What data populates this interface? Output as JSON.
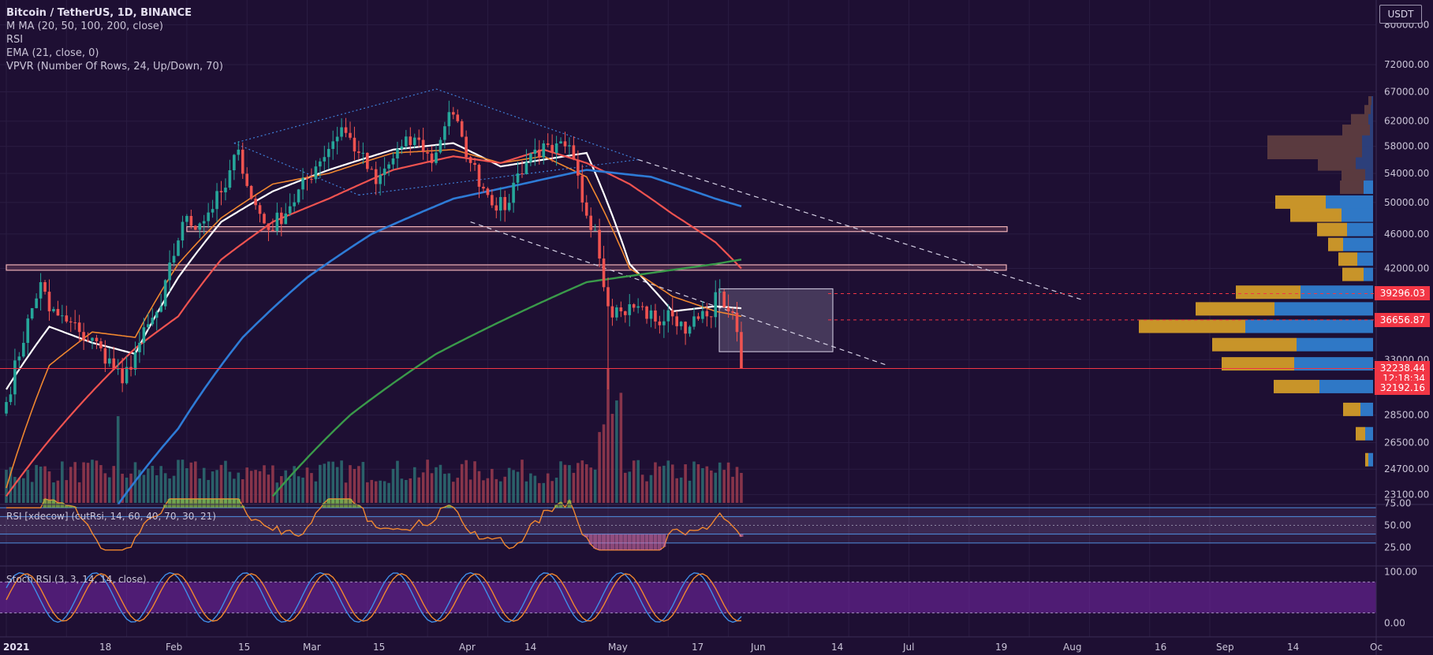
{
  "header": {
    "symbol": "Bitcoin / TetherUS, 1D, BINANCE",
    "indicators": [
      "M MA (20, 50, 100, 200, close)",
      "RSI",
      "EMA (21, close, 0)",
      "VPVR (Number Of Rows, 24, Up/Down, 70)"
    ],
    "currency": "USDT"
  },
  "panes": {
    "rsi_label": "RSI [xdecow] (cutRsi, 14, 60, 40, 70, 30, 21)",
    "stoch_label": "Stoch RSI (3, 3, 14, 14, close)"
  },
  "price_axis": {
    "ticks": [
      "80000.00",
      "72000.00",
      "67000.00",
      "62000.00",
      "58000.00",
      "54000.00",
      "50000.00",
      "46000.00",
      "42000.00",
      "33000.00",
      "28500.00",
      "26500.00",
      "24700.00",
      "23100.00"
    ],
    "top_partial": "8",
    "rsi_ticks": [
      "75.00",
      "50.00",
      "25.00"
    ],
    "stoch_ticks": [
      "100.00",
      "0.00"
    ]
  },
  "price_badges": [
    {
      "label": "39296.03",
      "value": 39296.03,
      "color": "#f23645"
    },
    {
      "label": "36656.87",
      "value": 36656.87,
      "color": "#f23645"
    },
    {
      "label": "32238.44",
      "value": 32238.44,
      "color": "#f23645"
    },
    {
      "label": "12:18:34",
      "value": 31400,
      "color": "#f23645"
    },
    {
      "label": "32192.16",
      "value": 30600,
      "color": "#f23645"
    }
  ],
  "time_axis": [
    "2021",
    "18",
    "Feb",
    "15",
    "Mar",
    "15",
    "Apr",
    "14",
    "May",
    "17",
    "Jun",
    "14",
    "Jul",
    "19",
    "Aug",
    "16",
    "Sep",
    "14",
    "Oc"
  ],
  "colors": {
    "background": "#1e0f33",
    "bull": "#26a69a",
    "bear": "#ef5350",
    "ma20": "#ffffff",
    "ma50": "#ef5350",
    "ma100": "#2e7bd6",
    "ma200": "#3a9a4a",
    "ema21": "#f0872f"
  },
  "chart_data": {
    "type": "candlestick",
    "ylim": [
      22500,
      84000
    ],
    "horizontal_levels": [
      39296.03,
      36656.87,
      32238.44
    ],
    "zones": [
      [
        46300,
        46900
      ],
      [
        41800,
        42400
      ]
    ],
    "range_box": [
      33700,
      39800
    ],
    "anchor_closes": [
      {
        "day": 0,
        "close": 29500
      },
      {
        "day": 8,
        "close": 40500
      },
      {
        "day": 10,
        "close": 37500
      },
      {
        "day": 14,
        "close": 36500
      },
      {
        "day": 17,
        "close": 35500
      },
      {
        "day": 22,
        "close": 34000
      },
      {
        "day": 27,
        "close": 31000
      },
      {
        "day": 31,
        "close": 34500
      },
      {
        "day": 36,
        "close": 38000
      },
      {
        "day": 41,
        "close": 47500
      },
      {
        "day": 45,
        "close": 47300
      },
      {
        "day": 51,
        "close": 52000
      },
      {
        "day": 54,
        "close": 57500
      },
      {
        "day": 57,
        "close": 50500
      },
      {
        "day": 61,
        "close": 46500
      },
      {
        "day": 66,
        "close": 49500
      },
      {
        "day": 72,
        "close": 55000
      },
      {
        "day": 78,
        "close": 61000
      },
      {
        "day": 82,
        "close": 57000
      },
      {
        "day": 86,
        "close": 52500
      },
      {
        "day": 92,
        "close": 58000
      },
      {
        "day": 96,
        "close": 59000
      },
      {
        "day": 99,
        "close": 55500
      },
      {
        "day": 103,
        "close": 63500
      },
      {
        "day": 106,
        "close": 59500
      },
      {
        "day": 108,
        "close": 55500
      },
      {
        "day": 112,
        "close": 51000
      },
      {
        "day": 116,
        "close": 49000
      },
      {
        "day": 119,
        "close": 54000
      },
      {
        "day": 123,
        "close": 57500
      },
      {
        "day": 127,
        "close": 57000
      },
      {
        "day": 130,
        "close": 58000
      },
      {
        "day": 132,
        "close": 56000
      },
      {
        "day": 134,
        "close": 50000
      },
      {
        "day": 137,
        "close": 46500
      },
      {
        "day": 140,
        "close": 38000
      },
      {
        "day": 143,
        "close": 37500
      },
      {
        "day": 147,
        "close": 38000
      },
      {
        "day": 151,
        "close": 36500
      },
      {
        "day": 155,
        "close": 37000
      },
      {
        "day": 159,
        "close": 36000
      },
      {
        "day": 163,
        "close": 37000
      },
      {
        "day": 166,
        "close": 39500
      },
      {
        "day": 168,
        "close": 37500
      },
      {
        "day": 170,
        "close": 35500
      },
      {
        "day": 171,
        "close": 32238.44
      }
    ],
    "ma_series": {
      "ma20": [
        [
          0,
          30500
        ],
        [
          10,
          36000
        ],
        [
          20,
          34500
        ],
        [
          30,
          33500
        ],
        [
          40,
          41000
        ],
        [
          50,
          47500
        ],
        [
          62,
          51500
        ],
        [
          75,
          54500
        ],
        [
          90,
          57500
        ],
        [
          104,
          58500
        ],
        [
          115,
          55000
        ],
        [
          125,
          56000
        ],
        [
          135,
          57000
        ],
        [
          145,
          42500
        ],
        [
          155,
          37500
        ],
        [
          165,
          38000
        ],
        [
          171,
          37800
        ]
      ],
      "ema21": [
        [
          0,
          23500
        ],
        [
          10,
          32500
        ],
        [
          20,
          35500
        ],
        [
          30,
          35000
        ],
        [
          40,
          42500
        ],
        [
          50,
          48000
        ],
        [
          62,
          52500
        ],
        [
          75,
          54000
        ],
        [
          90,
          57000
        ],
        [
          104,
          57500
        ],
        [
          115,
          55500
        ],
        [
          125,
          56500
        ],
        [
          135,
          53500
        ],
        [
          145,
          42000
        ],
        [
          155,
          39000
        ],
        [
          165,
          37500
        ],
        [
          171,
          37000
        ]
      ],
      "ma50": [
        [
          0,
          23000
        ],
        [
          15,
          28500
        ],
        [
          30,
          34000
        ],
        [
          40,
          37000
        ],
        [
          50,
          43000
        ],
        [
          62,
          47500
        ],
        [
          75,
          50500
        ],
        [
          90,
          54500
        ],
        [
          104,
          56500
        ],
        [
          115,
          55500
        ],
        [
          125,
          57500
        ],
        [
          135,
          55500
        ],
        [
          145,
          52500
        ],
        [
          155,
          48500
        ],
        [
          165,
          45000
        ],
        [
          171,
          42000
        ]
      ],
      "ma100": [
        [
          26,
          22500
        ],
        [
          40,
          27500
        ],
        [
          55,
          35000
        ],
        [
          70,
          41000
        ],
        [
          85,
          46000
        ],
        [
          104,
          50500
        ],
        [
          120,
          52500
        ],
        [
          135,
          54500
        ],
        [
          150,
          53500
        ],
        [
          165,
          50500
        ],
        [
          171,
          49500
        ]
      ],
      "ma200": [
        [
          62,
          23000
        ],
        [
          80,
          28500
        ],
        [
          100,
          33500
        ],
        [
          120,
          37500
        ],
        [
          135,
          40500
        ],
        [
          150,
          41500
        ],
        [
          165,
          42500
        ],
        [
          171,
          43000
        ]
      ]
    },
    "trendlines": [
      {
        "from": [
          53,
          58500
        ],
        "to": [
          100,
          67500
        ],
        "style": "dotted-blue"
      },
      {
        "from": [
          100,
          67500
        ],
        "to": [
          147,
          56000
        ],
        "style": "dotted-blue"
      },
      {
        "from": [
          53,
          58500
        ],
        "to": [
          82,
          51000
        ],
        "style": "dotted-blue"
      },
      {
        "from": [
          82,
          51000
        ],
        "to": [
          147,
          56000
        ],
        "style": "dotted-blue"
      },
      {
        "from": [
          147,
          56000
        ],
        "to": [
          250,
          38700
        ],
        "style": "dashed-white"
      },
      {
        "from": [
          108,
          47500
        ],
        "to": [
          205,
          32500
        ],
        "style": "dashed-white"
      }
    ],
    "vpvr_rows": [
      {
        "price": 65000,
        "up": 2,
        "down": 4
      },
      {
        "price": 63500,
        "up": 3,
        "down": 8
      },
      {
        "price": 62000,
        "up": 6,
        "down": 22
      },
      {
        "price": 60300,
        "up": 4,
        "down": 35
      },
      {
        "price": 58600,
        "up": 14,
        "down": 120
      },
      {
        "price": 57000,
        "up": 14,
        "down": 120
      },
      {
        "price": 55300,
        "up": 22,
        "down": 48
      },
      {
        "price": 53600,
        "up": 10,
        "down": 30
      },
      {
        "price": 52000,
        "up": 12,
        "down": 30
      },
      {
        "price": 50000,
        "up": 60,
        "down": 64
      },
      {
        "price": 48300,
        "up": 40,
        "down": 65
      },
      {
        "price": 46500,
        "up": 33,
        "down": 38
      },
      {
        "price": 44700,
        "up": 38,
        "down": 19
      },
      {
        "price": 43000,
        "up": 20,
        "down": 24
      },
      {
        "price": 41300,
        "up": 12,
        "down": 27
      },
      {
        "price": 39400,
        "up": 92,
        "down": 82
      },
      {
        "price": 37700,
        "up": 125,
        "down": 100
      },
      {
        "price": 36000,
        "up": 162,
        "down": 135
      },
      {
        "price": 34300,
        "up": 97,
        "down": 107
      },
      {
        "price": 32600,
        "up": 100,
        "down": 92
      },
      {
        "price": 30700,
        "up": 68,
        "down": 58
      },
      {
        "price": 28900,
        "up": 16,
        "down": 22
      },
      {
        "price": 27100,
        "up": 10,
        "down": 12
      },
      {
        "price": 25300,
        "up": 6,
        "down": 4
      }
    ],
    "rsi": {
      "ylim": [
        20,
        80
      ],
      "upper": 70,
      "lower": 30,
      "mid": 50,
      "band": [
        40,
        60
      ]
    },
    "stoch": {
      "ylim": [
        -5,
        105
      ],
      "upper": 80,
      "lower": 20
    }
  }
}
